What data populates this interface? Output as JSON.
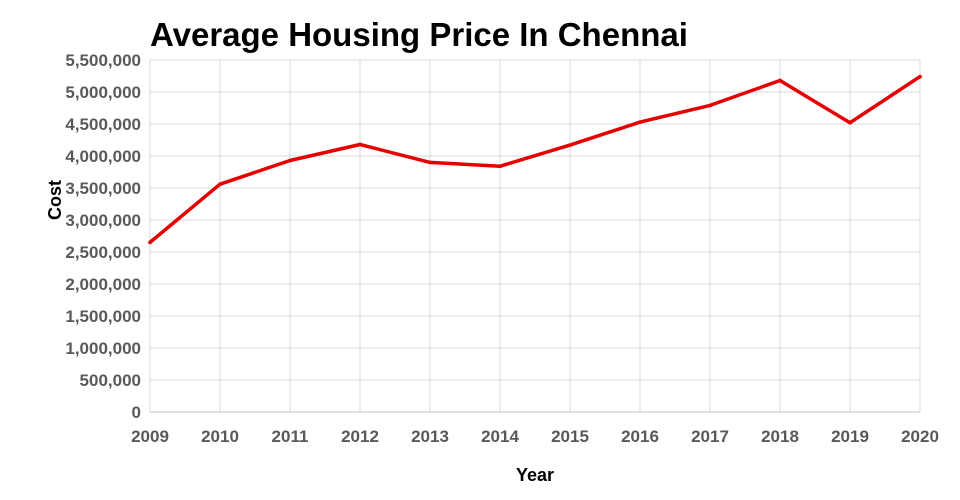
{
  "chart_data": {
    "type": "line",
    "title": "Average Housing Price In Chennai",
    "xlabel": "Year",
    "ylabel": "Cost",
    "x": [
      "2009",
      "2010",
      "2011",
      "2012",
      "2013",
      "2014",
      "2015",
      "2016",
      "2017",
      "2018",
      "2019",
      "2020"
    ],
    "series": [
      {
        "values": [
          2650000,
          3560000,
          3930000,
          4180000,
          3900000,
          3840000,
          4170000,
          4530000,
          4790000,
          5180000,
          4520000,
          5240000
        ],
        "color": "#e60000"
      }
    ],
    "ylim": [
      0,
      5500000
    ],
    "yticks": [
      "0",
      "500,000",
      "1,000,000",
      "1,500,000",
      "2,000,000",
      "2,500,000",
      "3,000,000",
      "3,500,000",
      "4,000,000",
      "4,500,000",
      "5,000,000",
      "5,500,000"
    ],
    "grid": true,
    "legend": "none"
  }
}
